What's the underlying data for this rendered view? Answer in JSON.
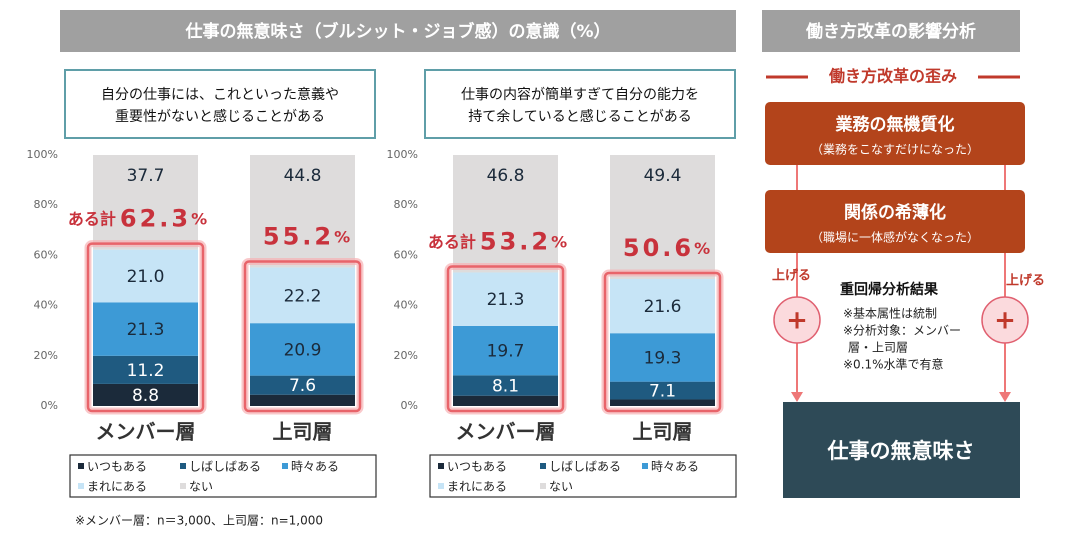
{
  "header": {
    "title": "仕事の無意味さ（ブルシット・ジョブ感）の意識（%）",
    "side_title": "働き方改革の影響分析"
  },
  "chart_data": [
    {
      "type": "stacked_bar",
      "caption_lines": [
        "自分の仕事には、これといった意義や",
        "重要性がないと感じることがある"
      ],
      "categories": [
        "メンバー層",
        "上司層"
      ],
      "ylim": [
        0,
        100
      ],
      "yticks": [
        {
          "value": 0,
          "label": "0%"
        },
        {
          "value": 20,
          "label": "20%"
        },
        {
          "value": 40,
          "label": "40%"
        },
        {
          "value": 60,
          "label": "60%"
        },
        {
          "value": 80,
          "label": "80%"
        },
        {
          "value": 100,
          "label": "100%"
        }
      ],
      "series": [
        {
          "name": "いつもある",
          "color": "#1b2a3a",
          "values": [
            8.8,
            4.5
          ],
          "value_labels": [
            "8.8",
            null
          ]
        },
        {
          "name": "しばしばある",
          "color": "#1f5a80",
          "values": [
            11.2,
            7.6
          ],
          "value_labels": [
            "11.2",
            "7.6"
          ]
        },
        {
          "name": "時々ある",
          "color": "#3d9ad6",
          "values": [
            21.3,
            20.9
          ],
          "value_labels": [
            "21.3",
            "20.9"
          ]
        },
        {
          "name": "まれにある",
          "color": "#c6e4f6",
          "values": [
            21.0,
            22.2
          ],
          "value_labels": [
            "21.0",
            "22.2"
          ]
        },
        {
          "name": "ない",
          "color": "#dedcdc",
          "values": [
            37.7,
            44.8
          ],
          "value_labels": [
            "37.7",
            "44.8"
          ]
        }
      ],
      "totals": [
        {
          "prefix": "ある計",
          "value": 62.3,
          "unit": "%"
        },
        {
          "value": 55.2,
          "unit": "%"
        }
      ]
    },
    {
      "type": "stacked_bar",
      "caption_lines": [
        "仕事の内容が簡単すぎて自分の能力を",
        "持て余していると感じることがある"
      ],
      "categories": [
        "メンバー層",
        "上司層"
      ],
      "ylim": [
        0,
        100
      ],
      "yticks": [
        {
          "value": 0,
          "label": "0%"
        },
        {
          "value": 20,
          "label": "20%"
        },
        {
          "value": 40,
          "label": "40%"
        },
        {
          "value": 60,
          "label": "60%"
        },
        {
          "value": 80,
          "label": "80%"
        },
        {
          "value": 100,
          "label": "100%"
        }
      ],
      "series": [
        {
          "name": "いつもある",
          "color": "#1b2a3a",
          "values": [
            4.1,
            2.6
          ],
          "value_labels": [
            null,
            null
          ]
        },
        {
          "name": "しばしばある",
          "color": "#1f5a80",
          "values": [
            8.1,
            7.1
          ],
          "value_labels": [
            "8.1",
            "7.1"
          ]
        },
        {
          "name": "時々ある",
          "color": "#3d9ad6",
          "values": [
            19.7,
            19.3
          ],
          "value_labels": [
            "19.7",
            "19.3"
          ]
        },
        {
          "name": "まれにある",
          "color": "#c6e4f6",
          "values": [
            21.3,
            21.6
          ],
          "value_labels": [
            "21.3",
            "21.6"
          ]
        },
        {
          "name": "ない",
          "color": "#dedcdc",
          "values": [
            46.8,
            49.4
          ],
          "value_labels": [
            "46.8",
            "49.4"
          ]
        }
      ],
      "totals": [
        {
          "prefix": "ある計",
          "value": 53.2,
          "unit": "%"
        },
        {
          "value": 50.6,
          "unit": "%"
        }
      ]
    }
  ],
  "footnote": "※メンバー層：n＝3,000、上司層：n=1,000",
  "diagram": {
    "distortion": "働き方改革の歪み",
    "boxes": [
      {
        "title": "業務の無機質化",
        "sub": "（業務をこなすだけになった）"
      },
      {
        "title": "関係の希薄化",
        "sub": "（職場に一体感がなくなった）"
      }
    ],
    "raise_labels": [
      "上げる",
      "上げる"
    ],
    "plus": "+",
    "result_title": "重回帰分析結果",
    "notes": [
      "※基本属性は統制",
      "※分析対象：メンバー",
      "層・上司層",
      "※0.1%水準で有意"
    ],
    "outcome": "仕事の無意味さ"
  }
}
